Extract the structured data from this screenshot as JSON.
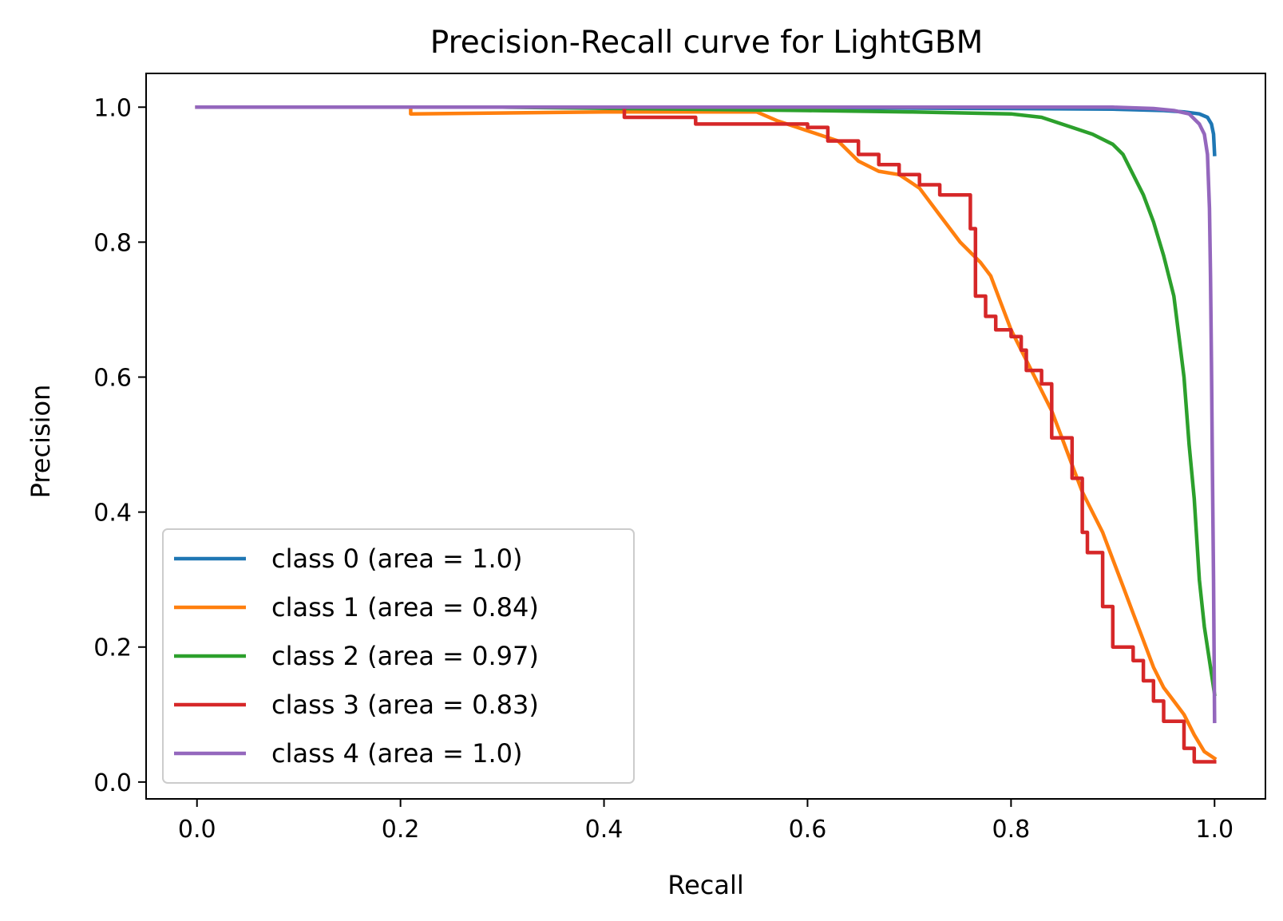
{
  "chart_data": {
    "type": "line",
    "title": "Precision-Recall curve for LightGBM",
    "xlabel": "Recall",
    "ylabel": "Precision",
    "xlim": [
      -0.05,
      1.05
    ],
    "ylim": [
      -0.025,
      1.05
    ],
    "xticks": [
      "0.0",
      "0.2",
      "0.4",
      "0.6",
      "0.8",
      "1.0"
    ],
    "yticks": [
      "0.0",
      "0.2",
      "0.4",
      "0.6",
      "0.8",
      "1.0"
    ],
    "grid": false,
    "legend_position": "lower-left",
    "series": [
      {
        "name": "class 0 (area = 1.0)",
        "color": "#1f77b4",
        "points": [
          [
            0.0,
            1.0
          ],
          [
            0.5,
            1.0
          ],
          [
            0.8,
            0.998
          ],
          [
            0.9,
            0.997
          ],
          [
            0.95,
            0.995
          ],
          [
            0.97,
            0.993
          ],
          [
            0.985,
            0.99
          ],
          [
            0.993,
            0.985
          ],
          [
            0.997,
            0.975
          ],
          [
            0.999,
            0.96
          ],
          [
            1.0,
            0.93
          ]
        ]
      },
      {
        "name": "class 1 (area = 0.84)",
        "color": "#ff7f0e",
        "points": [
          [
            0.0,
            1.0
          ],
          [
            0.21,
            1.0
          ],
          [
            0.21,
            0.99
          ],
          [
            0.4,
            0.993
          ],
          [
            0.55,
            0.993
          ],
          [
            0.57,
            0.98
          ],
          [
            0.59,
            0.97
          ],
          [
            0.61,
            0.96
          ],
          [
            0.63,
            0.95
          ],
          [
            0.65,
            0.92
          ],
          [
            0.67,
            0.905
          ],
          [
            0.69,
            0.9
          ],
          [
            0.71,
            0.88
          ],
          [
            0.72,
            0.86
          ],
          [
            0.73,
            0.84
          ],
          [
            0.74,
            0.82
          ],
          [
            0.75,
            0.8
          ],
          [
            0.76,
            0.785
          ],
          [
            0.77,
            0.77
          ],
          [
            0.78,
            0.75
          ],
          [
            0.79,
            0.71
          ],
          [
            0.8,
            0.67
          ],
          [
            0.81,
            0.64
          ],
          [
            0.82,
            0.61
          ],
          [
            0.83,
            0.58
          ],
          [
            0.84,
            0.55
          ],
          [
            0.85,
            0.51
          ],
          [
            0.86,
            0.47
          ],
          [
            0.87,
            0.43
          ],
          [
            0.88,
            0.4
          ],
          [
            0.89,
            0.37
          ],
          [
            0.9,
            0.33
          ],
          [
            0.91,
            0.29
          ],
          [
            0.92,
            0.25
          ],
          [
            0.93,
            0.21
          ],
          [
            0.94,
            0.17
          ],
          [
            0.95,
            0.14
          ],
          [
            0.96,
            0.12
          ],
          [
            0.97,
            0.1
          ],
          [
            0.98,
            0.07
          ],
          [
            0.99,
            0.045
          ],
          [
            1.0,
            0.035
          ]
        ]
      },
      {
        "name": "class 2 (area = 0.97)",
        "color": "#2ca02c",
        "points": [
          [
            0.0,
            1.0
          ],
          [
            0.3,
            1.0
          ],
          [
            0.6,
            0.995
          ],
          [
            0.7,
            0.993
          ],
          [
            0.8,
            0.99
          ],
          [
            0.83,
            0.985
          ],
          [
            0.86,
            0.97
          ],
          [
            0.88,
            0.96
          ],
          [
            0.9,
            0.945
          ],
          [
            0.91,
            0.93
          ],
          [
            0.92,
            0.9
          ],
          [
            0.93,
            0.87
          ],
          [
            0.94,
            0.83
          ],
          [
            0.95,
            0.78
          ],
          [
            0.96,
            0.72
          ],
          [
            0.965,
            0.66
          ],
          [
            0.97,
            0.6
          ],
          [
            0.975,
            0.5
          ],
          [
            0.98,
            0.42
          ],
          [
            0.985,
            0.3
          ],
          [
            0.99,
            0.23
          ],
          [
            0.995,
            0.18
          ],
          [
            1.0,
            0.13
          ]
        ]
      },
      {
        "name": "class 3 (area = 0.83)",
        "color": "#d62728",
        "points": [
          [
            0.0,
            1.0
          ],
          [
            0.42,
            1.0
          ],
          [
            0.42,
            0.985
          ],
          [
            0.49,
            0.985
          ],
          [
            0.49,
            0.975
          ],
          [
            0.6,
            0.975
          ],
          [
            0.6,
            0.97
          ],
          [
            0.62,
            0.97
          ],
          [
            0.62,
            0.95
          ],
          [
            0.65,
            0.95
          ],
          [
            0.65,
            0.93
          ],
          [
            0.67,
            0.93
          ],
          [
            0.67,
            0.915
          ],
          [
            0.69,
            0.915
          ],
          [
            0.69,
            0.9
          ],
          [
            0.71,
            0.9
          ],
          [
            0.71,
            0.885
          ],
          [
            0.73,
            0.885
          ],
          [
            0.73,
            0.87
          ],
          [
            0.76,
            0.87
          ],
          [
            0.76,
            0.82
          ],
          [
            0.765,
            0.82
          ],
          [
            0.765,
            0.72
          ],
          [
            0.775,
            0.72
          ],
          [
            0.775,
            0.69
          ],
          [
            0.785,
            0.69
          ],
          [
            0.785,
            0.67
          ],
          [
            0.8,
            0.67
          ],
          [
            0.8,
            0.66
          ],
          [
            0.81,
            0.66
          ],
          [
            0.81,
            0.64
          ],
          [
            0.815,
            0.64
          ],
          [
            0.815,
            0.61
          ],
          [
            0.83,
            0.61
          ],
          [
            0.83,
            0.59
          ],
          [
            0.84,
            0.59
          ],
          [
            0.84,
            0.51
          ],
          [
            0.86,
            0.51
          ],
          [
            0.86,
            0.45
          ],
          [
            0.87,
            0.45
          ],
          [
            0.87,
            0.37
          ],
          [
            0.875,
            0.37
          ],
          [
            0.875,
            0.34
          ],
          [
            0.89,
            0.34
          ],
          [
            0.89,
            0.26
          ],
          [
            0.9,
            0.26
          ],
          [
            0.9,
            0.2
          ],
          [
            0.92,
            0.2
          ],
          [
            0.92,
            0.18
          ],
          [
            0.93,
            0.18
          ],
          [
            0.93,
            0.15
          ],
          [
            0.94,
            0.15
          ],
          [
            0.94,
            0.12
          ],
          [
            0.95,
            0.12
          ],
          [
            0.95,
            0.09
          ],
          [
            0.97,
            0.09
          ],
          [
            0.97,
            0.05
          ],
          [
            0.98,
            0.05
          ],
          [
            0.98,
            0.03
          ],
          [
            1.0,
            0.03
          ]
        ]
      },
      {
        "name": "class 4 (area = 1.0)",
        "color": "#9467bd",
        "points": [
          [
            0.0,
            1.0
          ],
          [
            0.6,
            1.0
          ],
          [
            0.9,
            1.0
          ],
          [
            0.94,
            0.998
          ],
          [
            0.96,
            0.995
          ],
          [
            0.975,
            0.99
          ],
          [
            0.985,
            0.975
          ],
          [
            0.99,
            0.96
          ],
          [
            0.993,
            0.93
          ],
          [
            0.995,
            0.85
          ],
          [
            0.996,
            0.75
          ],
          [
            0.997,
            0.62
          ],
          [
            0.998,
            0.45
          ],
          [
            0.999,
            0.3
          ],
          [
            1.0,
            0.09
          ]
        ]
      }
    ]
  }
}
